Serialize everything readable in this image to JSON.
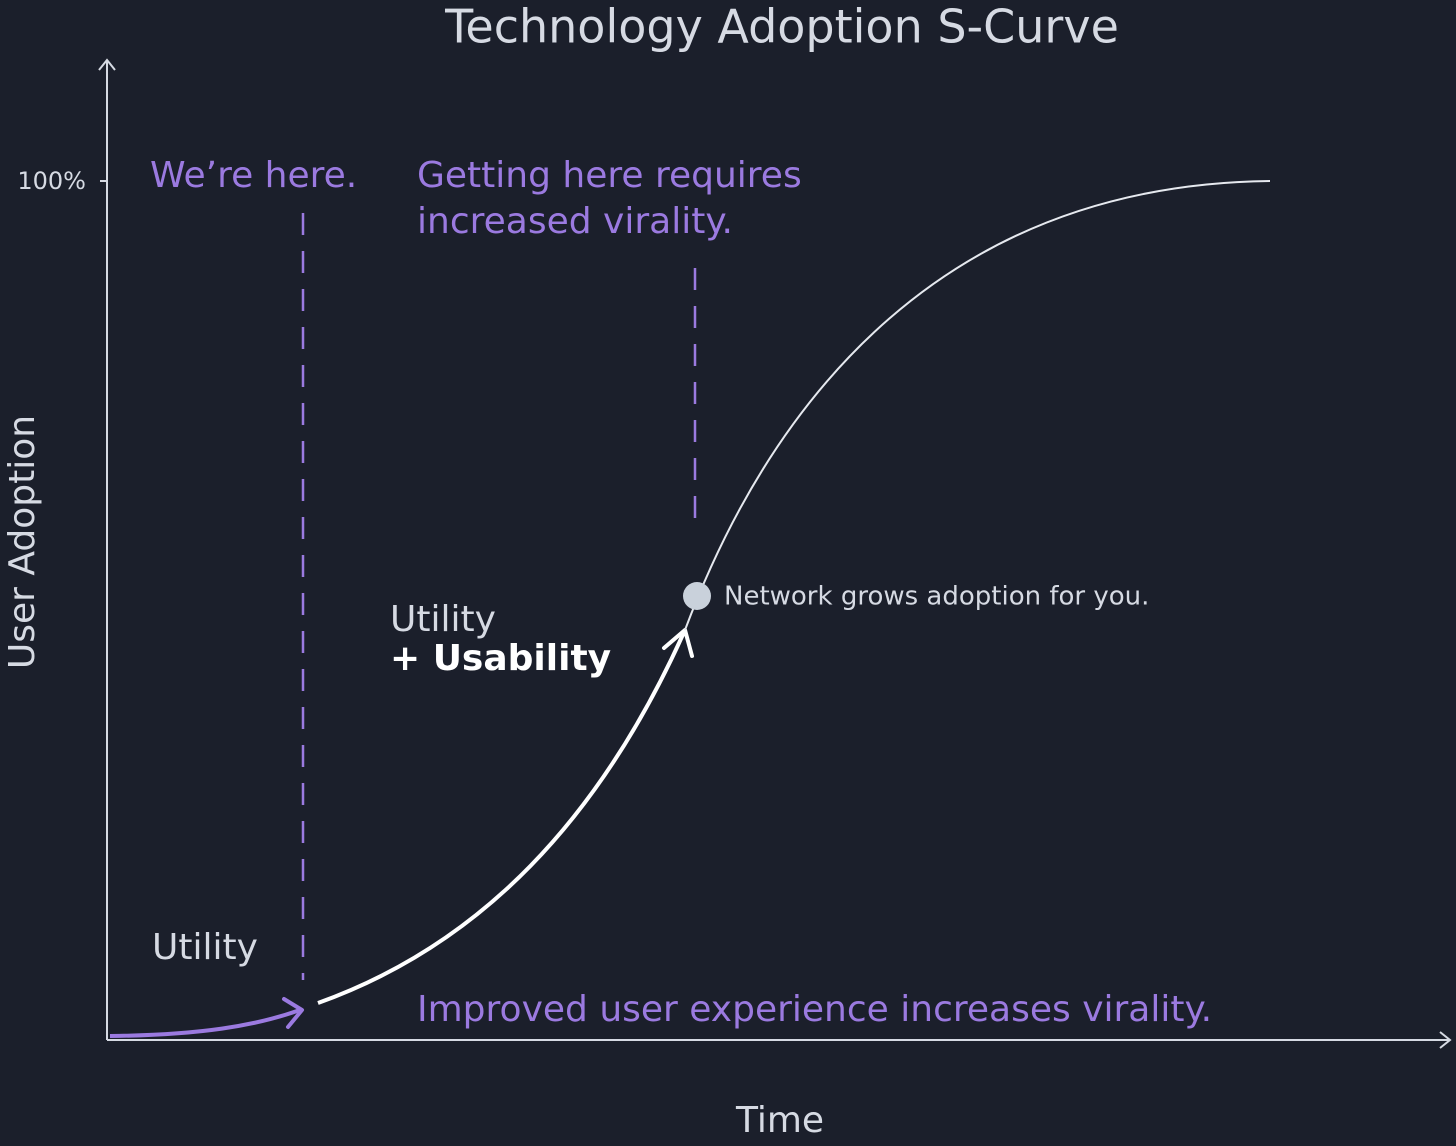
{
  "title": "Technology Adoption S-Curve",
  "axes": {
    "y_label": "User Adoption",
    "x_label": "Time",
    "y_tick": "100%"
  },
  "annotations": {
    "current": "We’re here.",
    "target": [
      "Getting here requires",
      "increased virality."
    ],
    "network_point": "Network grows adoption for you.",
    "stage2": [
      "Utility",
      "+ Usability"
    ],
    "stage1": "Utility",
    "footer": "Improved user experience increases virality."
  }
}
